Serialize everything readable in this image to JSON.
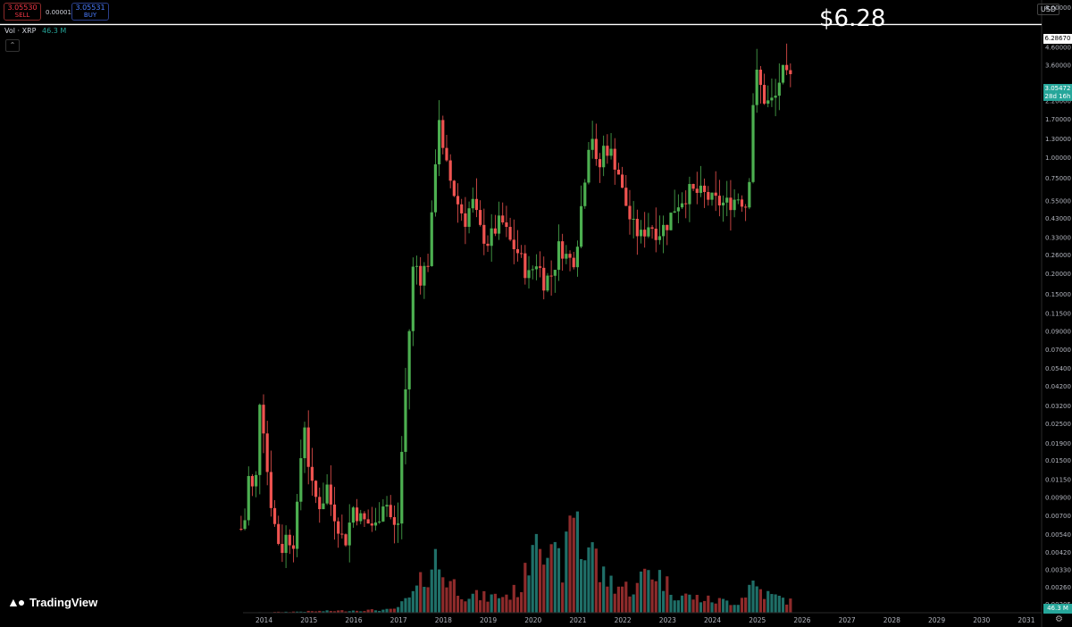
{
  "toolbar": {
    "sell_price": "3.05530",
    "sell_label": "SELL",
    "buy_price": "3.05531",
    "buy_label": "BUY",
    "spread": "0.00001"
  },
  "legend": {
    "vol_label": "Vol · XRP",
    "vol_value": "46.3 M"
  },
  "axis": {
    "currency": "USD"
  },
  "annotation": {
    "big_label": "$6.28"
  },
  "price_tags": {
    "horizontal_line": "6.28670",
    "last_price": "3.05472",
    "countdown": "28d 16h",
    "volume": "46.3 M"
  },
  "branding": {
    "logo_text": "TradingView",
    "logo_icon": "tradingview-logo-icon"
  },
  "colors": {
    "up": "#26a69a",
    "down": "#f23645",
    "up_candle": "#4caf50",
    "down_candle": "#ef5350",
    "line": "#ffffff"
  },
  "chart_data": {
    "type": "candlestick",
    "symbol": "XRP",
    "timeframe": "monthly",
    "y_scale": "log",
    "ylim": [
      0.00205,
      8.0
    ],
    "horizontal_line": 6.2867,
    "y_ticks": [
      8.0,
      6.2867,
      4.6,
      3.6,
      2.2,
      1.7,
      1.3,
      1.0,
      0.75,
      0.55,
      0.43,
      0.33,
      0.26,
      0.2,
      0.15,
      0.115,
      0.09,
      0.07,
      0.054,
      0.042,
      0.032,
      0.025,
      0.019,
      0.015,
      0.0115,
      0.009,
      0.007,
      0.0054,
      0.0042,
      0.0033,
      0.0026,
      0.00205
    ],
    "y_tick_labels": [
      "8.00000",
      "6.28670",
      "4.60000",
      "3.60000",
      "2.20000",
      "1.70000",
      "1.30000",
      "1.00000",
      "0.75000",
      "0.55000",
      "0.43000",
      "0.33000",
      "0.26000",
      "0.20000",
      "0.15000",
      "0.11500",
      "0.09000",
      "0.07000",
      "0.05400",
      "0.04200",
      "0.03200",
      "0.02500",
      "0.01900",
      "0.01500",
      "0.01150",
      "0.00900",
      "0.00700",
      "0.00540",
      "0.00420",
      "0.00330",
      "0.00260",
      "0.00205"
    ],
    "x_ticks": [
      "2014",
      "2015",
      "2016",
      "2017",
      "2018",
      "2019",
      "2020",
      "2021",
      "2022",
      "2023",
      "2024",
      "2025",
      "2026",
      "2027",
      "2028",
      "2029",
      "2030",
      "2031"
    ],
    "x_range": [
      2013.4,
      2031.6
    ],
    "anchors": [
      [
        2013.5,
        0.0058
      ],
      [
        2013.6,
        0.0068
      ],
      [
        2013.7,
        0.0155
      ],
      [
        2013.8,
        0.0065
      ],
      [
        2013.9,
        0.038
      ],
      [
        2014.0,
        0.024
      ],
      [
        2014.1,
        0.0115
      ],
      [
        2014.2,
        0.0072
      ],
      [
        2014.3,
        0.0052
      ],
      [
        2014.4,
        0.0043
      ],
      [
        2014.5,
        0.0052
      ],
      [
        2014.7,
        0.0049
      ],
      [
        2014.9,
        0.028
      ],
      [
        2015.0,
        0.0145
      ],
      [
        2015.1,
        0.0095
      ],
      [
        2015.3,
        0.0078
      ],
      [
        2015.4,
        0.011
      ],
      [
        2015.5,
        0.0082
      ],
      [
        2015.7,
        0.0058
      ],
      [
        2015.8,
        0.0046
      ],
      [
        2016.0,
        0.0078
      ],
      [
        2016.2,
        0.0065
      ],
      [
        2016.5,
        0.006
      ],
      [
        2016.7,
        0.0092
      ],
      [
        2016.9,
        0.0058
      ],
      [
        2017.0,
        0.0063
      ],
      [
        2017.1,
        0.0205
      ],
      [
        2017.2,
        0.055
      ],
      [
        2017.35,
        0.25
      ],
      [
        2017.5,
        0.19
      ],
      [
        2017.7,
        0.25
      ],
      [
        2017.9,
        1.95
      ],
      [
        2018.0,
        1.05
      ],
      [
        2018.15,
        0.75
      ],
      [
        2018.3,
        0.55
      ],
      [
        2018.5,
        0.42
      ],
      [
        2018.65,
        0.55
      ],
      [
        2018.85,
        0.35
      ],
      [
        2019.0,
        0.31
      ],
      [
        2019.3,
        0.42
      ],
      [
        2019.5,
        0.31
      ],
      [
        2019.7,
        0.26
      ],
      [
        2019.9,
        0.19
      ],
      [
        2020.1,
        0.24
      ],
      [
        2020.25,
        0.18
      ],
      [
        2020.45,
        0.2
      ],
      [
        2020.6,
        0.3
      ],
      [
        2020.8,
        0.24
      ],
      [
        2020.95,
        0.25
      ],
      [
        2021.1,
        0.55
      ],
      [
        2021.3,
        1.6
      ],
      [
        2021.45,
        0.75
      ],
      [
        2021.6,
        1.2
      ],
      [
        2021.75,
        1.05
      ],
      [
        2021.9,
        0.85
      ],
      [
        2022.0,
        0.62
      ],
      [
        2022.2,
        0.4
      ],
      [
        2022.4,
        0.33
      ],
      [
        2022.6,
        0.4
      ],
      [
        2022.8,
        0.35
      ],
      [
        2023.0,
        0.4
      ],
      [
        2023.2,
        0.52
      ],
      [
        2023.5,
        0.62
      ],
      [
        2023.8,
        0.6
      ],
      [
        2024.0,
        0.55
      ],
      [
        2024.3,
        0.52
      ],
      [
        2024.6,
        0.58
      ],
      [
        2024.8,
        0.5
      ],
      [
        2024.9,
        2.0
      ],
      [
        2025.0,
        3.1
      ],
      [
        2025.2,
        2.1
      ],
      [
        2025.4,
        2.2
      ],
      [
        2025.55,
        3.3
      ],
      [
        2025.7,
        2.9
      ],
      [
        2025.8,
        3.0
      ]
    ],
    "volume_anchors": [
      [
        2013.5,
        0
      ],
      [
        2016.9,
        0.02
      ],
      [
        2017.1,
        0.06
      ],
      [
        2017.35,
        0.12
      ],
      [
        2017.85,
        0.36
      ],
      [
        2018.0,
        0.25
      ],
      [
        2018.5,
        0.12
      ],
      [
        2019.0,
        0.1
      ],
      [
        2019.5,
        0.12
      ],
      [
        2019.8,
        0.18
      ],
      [
        2020.1,
        0.7
      ],
      [
        2020.4,
        0.35
      ],
      [
        2020.7,
        0.3
      ],
      [
        2020.85,
        0.58
      ],
      [
        2020.95,
        0.8
      ],
      [
        2021.1,
        0.35
      ],
      [
        2021.3,
        0.5
      ],
      [
        2021.5,
        0.25
      ],
      [
        2021.9,
        0.18
      ],
      [
        2022.3,
        0.15
      ],
      [
        2022.55,
        0.3
      ],
      [
        2022.8,
        0.25
      ],
      [
        2023.2,
        0.12
      ],
      [
        2023.6,
        0.1
      ],
      [
        2024.0,
        0.08
      ],
      [
        2024.6,
        0.07
      ],
      [
        2024.9,
        0.2
      ],
      [
        2025.2,
        0.12
      ],
      [
        2025.7,
        0.08
      ],
      [
        2025.8,
        0.06
      ]
    ]
  }
}
